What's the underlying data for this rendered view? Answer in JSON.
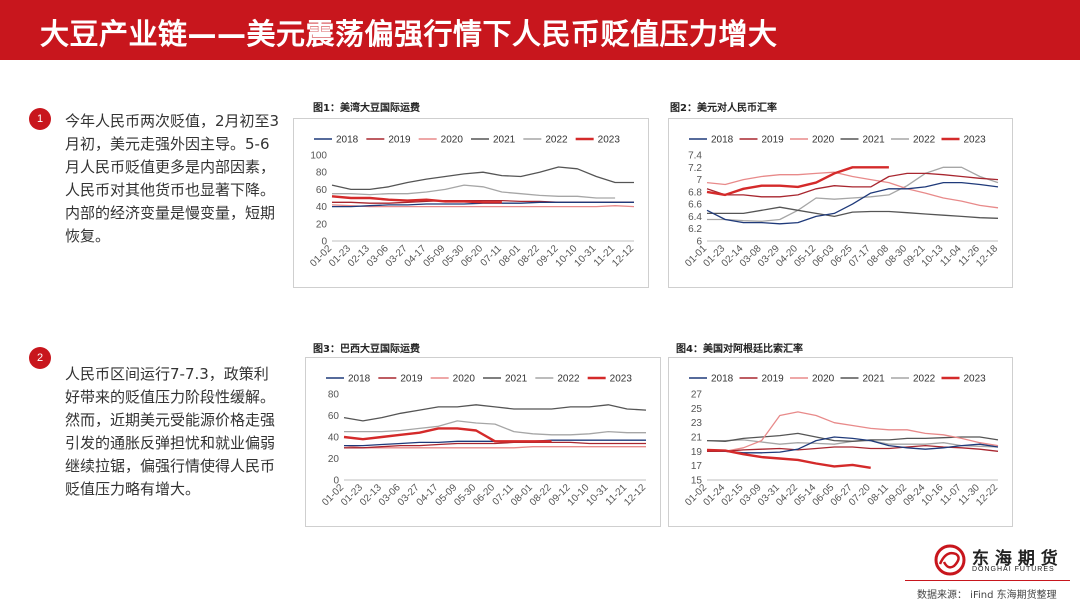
{
  "header": {
    "title": "大豆产业链——美元震荡偏强行情下人民币贬值压力增大"
  },
  "points": [
    {
      "num": "1",
      "text": "今年人民币两次贬值，2月初至3月初，美元走强外因主导。5-6月人民币贬值更多是内部因素，人民币对其他货币也显著下降。内部的经济变量是慢变量，短期恢复。"
    },
    {
      "num": "2",
      "text": "人民币区间运行7-7.3，政策利好带来的贬值压力阶段性缓解。然而，近期美元受能源价格走强引发的通胀反弹担忧和就业偏弱继续拉锯，偏强行情使得人民币贬值压力略有增大。"
    }
  ],
  "colors": {
    "2018": "#1f3a7a",
    "2019": "#a8262f",
    "2020": "#e88a8a",
    "2021": "#555555",
    "2022": "#a6a6a6",
    "2023": "#d42a2a",
    "accent": "#c8161d"
  },
  "chart_data": [
    {
      "type": "line",
      "title": "图1：美湾大豆国际运费",
      "x_ticks": [
        "01-02",
        "01-23",
        "02-13",
        "03-06",
        "03-27",
        "04-17",
        "05-09",
        "05-30",
        "06-20",
        "07-11",
        "08-01",
        "08-22",
        "09-12",
        "10-10",
        "10-31",
        "11-21",
        "12-12"
      ],
      "y_ticks": [
        "0",
        "20",
        "40",
        "60",
        "80",
        "100"
      ],
      "ylim": [
        0,
        100
      ],
      "legend": [
        "2018",
        "2019",
        "2020",
        "2021",
        "2022",
        "2023"
      ],
      "series": [
        {
          "name": "2018",
          "values": [
            40,
            40,
            41,
            42,
            42,
            43,
            43,
            43,
            44,
            44,
            44,
            45,
            45,
            45,
            45,
            45,
            45
          ]
        },
        {
          "name": "2019",
          "values": [
            45,
            45,
            44,
            44,
            45,
            46,
            47,
            47,
            47,
            47,
            46,
            46,
            45,
            45,
            45,
            45,
            45
          ]
        },
        {
          "name": "2020",
          "values": [
            42,
            41,
            40,
            40,
            40,
            40,
            40,
            40,
            40,
            40,
            40,
            40,
            40,
            40,
            40,
            41,
            40
          ]
        },
        {
          "name": "2021",
          "values": [
            65,
            60,
            60,
            63,
            68,
            72,
            75,
            78,
            80,
            76,
            75,
            80,
            86,
            84,
            75,
            68,
            68
          ]
        },
        {
          "name": "2022",
          "values": [
            55,
            55,
            54,
            55,
            55,
            57,
            60,
            65,
            63,
            57,
            55,
            53,
            52,
            52,
            50,
            50
          ]
        },
        {
          "name": "2023",
          "values": [
            52,
            50,
            50,
            48,
            47,
            48,
            46,
            46,
            45,
            45
          ]
        }
      ]
    },
    {
      "type": "line",
      "title": "图2：美元对人民币汇率",
      "x_ticks": [
        "01-01",
        "01-23",
        "02-14",
        "03-08",
        "03-29",
        "04-20",
        "05-12",
        "06-03",
        "06-25",
        "07-17",
        "08-08",
        "08-30",
        "09-21",
        "10-13",
        "11-04",
        "11-26",
        "12-18"
      ],
      "y_ticks": [
        "6",
        "6.2",
        "6.4",
        "6.6",
        "6.8",
        "7",
        "7.2",
        "7.4"
      ],
      "ylim": [
        6,
        7.4
      ],
      "legend": [
        "2018",
        "2019",
        "2020",
        "2021",
        "2022",
        "2023"
      ],
      "series": [
        {
          "name": "2018",
          "values": [
            6.5,
            6.35,
            6.3,
            6.3,
            6.28,
            6.3,
            6.4,
            6.45,
            6.6,
            6.78,
            6.85,
            6.85,
            6.88,
            6.95,
            6.95,
            6.92,
            6.88
          ]
        },
        {
          "name": "2019",
          "values": [
            6.85,
            6.75,
            6.75,
            6.72,
            6.72,
            6.75,
            6.85,
            6.9,
            6.88,
            6.88,
            7.05,
            7.1,
            7.1,
            7.08,
            7.05,
            7.02,
            7.0
          ]
        },
        {
          "name": "2020",
          "values": [
            6.95,
            6.92,
            7.0,
            7.05,
            7.08,
            7.08,
            7.1,
            7.12,
            7.05,
            7.0,
            6.95,
            6.85,
            6.78,
            6.7,
            6.65,
            6.58,
            6.54
          ]
        },
        {
          "name": "2021",
          "values": [
            6.45,
            6.45,
            6.45,
            6.5,
            6.55,
            6.5,
            6.45,
            6.4,
            6.47,
            6.48,
            6.48,
            6.46,
            6.44,
            6.42,
            6.4,
            6.38,
            6.37
          ]
        },
        {
          "name": "2022",
          "values": [
            6.35,
            6.35,
            6.33,
            6.32,
            6.35,
            6.5,
            6.7,
            6.68,
            6.7,
            6.72,
            6.75,
            6.9,
            7.1,
            7.2,
            7.2,
            7.05,
            6.95
          ]
        },
        {
          "name": "2023",
          "values": [
            6.8,
            6.75,
            6.85,
            6.9,
            6.9,
            6.88,
            6.95,
            7.1,
            7.2,
            7.2,
            7.2
          ]
        }
      ]
    },
    {
      "type": "line",
      "title": "图3：巴西大豆国际运费",
      "x_ticks": [
        "01-02",
        "01-23",
        "02-13",
        "03-06",
        "03-27",
        "04-17",
        "05-09",
        "05-30",
        "06-20",
        "07-11",
        "08-01",
        "08-22",
        "09-12",
        "10-10",
        "10-31",
        "11-21",
        "12-12"
      ],
      "y_ticks": [
        "0",
        "20",
        "40",
        "60",
        "80"
      ],
      "ylim": [
        0,
        80
      ],
      "legend": [
        "2018",
        "2019",
        "2020",
        "2021",
        "2022",
        "2023"
      ],
      "series": [
        {
          "name": "2018",
          "values": [
            32,
            32,
            33,
            34,
            35,
            35,
            36,
            36,
            36,
            36,
            36,
            37,
            37,
            37,
            37,
            37,
            37
          ]
        },
        {
          "name": "2019",
          "values": [
            30,
            30,
            31,
            32,
            32,
            33,
            34,
            34,
            34,
            35,
            35,
            35,
            35,
            34,
            34,
            34,
            34
          ]
        },
        {
          "name": "2020",
          "values": [
            32,
            30,
            30,
            30,
            30,
            30,
            30,
            30,
            30,
            30,
            31,
            31,
            31,
            31,
            31,
            31,
            31
          ]
        },
        {
          "name": "2021",
          "values": [
            58,
            55,
            58,
            62,
            65,
            68,
            68,
            70,
            68,
            66,
            66,
            66,
            68,
            68,
            70,
            66,
            65
          ]
        },
        {
          "name": "2022",
          "values": [
            45,
            45,
            45,
            46,
            48,
            50,
            55,
            53,
            52,
            45,
            43,
            42,
            42,
            43,
            45,
            44,
            44
          ]
        },
        {
          "name": "2023",
          "values": [
            40,
            38,
            40,
            42,
            44,
            48,
            48,
            46,
            36,
            36,
            36,
            36
          ]
        }
      ]
    },
    {
      "type": "line",
      "title": "图4：美国对阿根廷比索汇率",
      "x_ticks": [
        "01-02",
        "01-24",
        "02-15",
        "03-09",
        "03-31",
        "04-22",
        "05-14",
        "06-05",
        "06-27",
        "07-20",
        "08-11",
        "09-02",
        "09-24",
        "10-16",
        "11-07",
        "11-30",
        "12-22"
      ],
      "y_ticks": [
        "15",
        "17",
        "19",
        "21",
        "23",
        "25",
        "27"
      ],
      "ylim": [
        15,
        27
      ],
      "legend": [
        "2018",
        "2019",
        "2020",
        "2021",
        "2022",
        "2023"
      ],
      "series": [
        {
          "name": "2018",
          "values": [
            19.2,
            19.0,
            18.8,
            18.8,
            18.9,
            19.3,
            20.5,
            21.0,
            20.8,
            20.5,
            19.8,
            19.5,
            19.3,
            19.5,
            19.8,
            20.0,
            19.6
          ]
        },
        {
          "name": "2019",
          "values": [
            19.0,
            19.0,
            19.2,
            19.3,
            19.4,
            19.2,
            19.4,
            19.6,
            19.6,
            19.4,
            19.4,
            19.6,
            19.8,
            19.6,
            19.5,
            19.3,
            19.0
          ]
        },
        {
          "name": "2020",
          "values": [
            19.2,
            19.0,
            19.5,
            20.5,
            24.0,
            24.5,
            24.0,
            23.0,
            22.6,
            22.2,
            22.0,
            22.0,
            21.5,
            21.3,
            20.8,
            20.2,
            19.8
          ]
        },
        {
          "name": "2021",
          "values": [
            20.5,
            20.4,
            20.8,
            21.0,
            21.2,
            21.5,
            21.0,
            20.5,
            20.4,
            20.6,
            20.6,
            20.8,
            20.8,
            20.9,
            21.0,
            21.0,
            20.6
          ]
        },
        {
          "name": "2022",
          "values": [
            20.5,
            20.5,
            20.6,
            20.3,
            20.0,
            20.2,
            20.1,
            20.0,
            20.4,
            20.5,
            20.0,
            20.0,
            20.0,
            20.2,
            19.8,
            19.7,
            19.6
          ]
        },
        {
          "name": "2023",
          "values": [
            19.2,
            19.1,
            18.6,
            18.2,
            18.0,
            17.8,
            17.3,
            16.9,
            17.1,
            16.7
          ]
        }
      ]
    }
  ],
  "logo": {
    "cn": "东 海 期 货",
    "en": "DONGHAI FUTURES"
  },
  "source": "数据来源：  iFind 东海期货整理"
}
